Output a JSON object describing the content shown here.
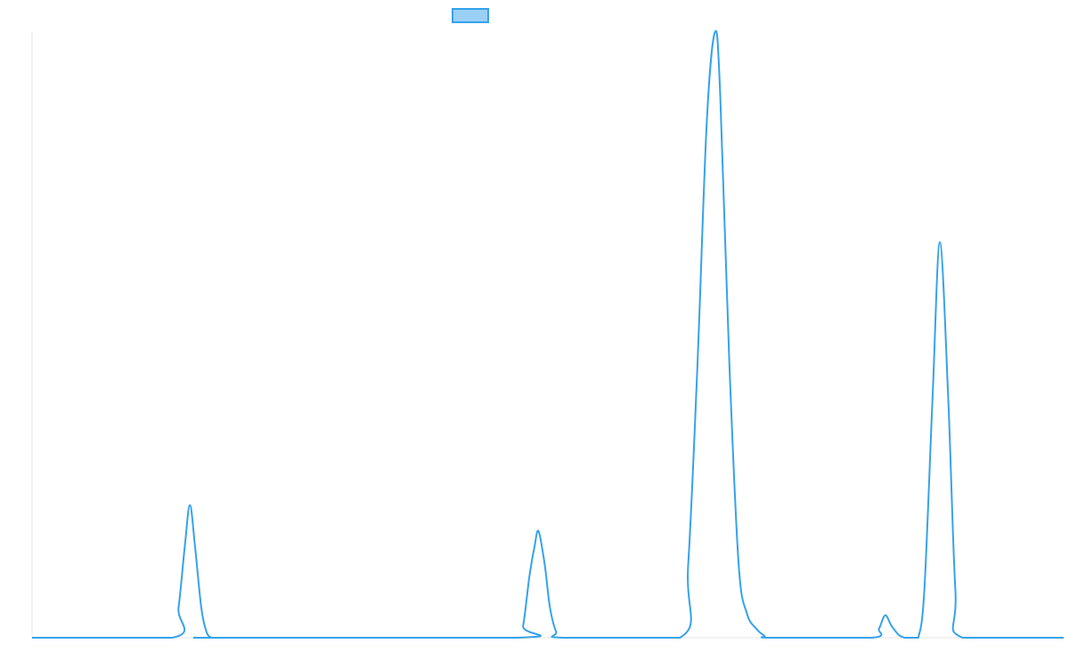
{
  "chart_data": {
    "type": "line",
    "title": "",
    "xlabel": "",
    "ylabel": "",
    "grid": false,
    "legend": {
      "position": "top-center",
      "entries": [
        {
          "label": "",
          "color": "#36a2eb",
          "fill": "#9ad0f5"
        }
      ]
    },
    "xlim": [
      0,
      100
    ],
    "ylim": [
      0,
      100
    ],
    "series": [
      {
        "color": "#36a2eb",
        "x": [
          0,
          13.6,
          14.2,
          14.8,
          15.3,
          15.8,
          16.4,
          16.9,
          17.4,
          18.0,
          47.0,
          47.6,
          48.2,
          48.7,
          49.1,
          49.7,
          50.2,
          50.8,
          51.4,
          62.8,
          63.6,
          64.5,
          65.4,
          66.2,
          66.7,
          67.6,
          68.5,
          69.3,
          70.2,
          71.0,
          71.6,
          81.4,
          82.1,
          82.7,
          83.3,
          84.0,
          84.6,
          85.3,
          85.9,
          86.5,
          87.3,
          88.0,
          88.8,
          89.5,
          90.2,
          100
        ],
        "y": [
          0,
          0,
          5,
          15,
          21.9,
          15,
          5,
          1,
          0,
          0,
          0,
          2,
          10,
          15,
          17.6,
          12,
          5,
          1,
          0,
          0,
          12,
          45,
          85,
          100,
          90,
          45,
          12,
          4,
          1.5,
          0.3,
          0,
          0,
          1.5,
          3.7,
          2,
          0.5,
          0,
          0,
          0,
          8,
          40,
          65.3,
          40,
          8,
          0,
          0
        ]
      }
    ]
  }
}
